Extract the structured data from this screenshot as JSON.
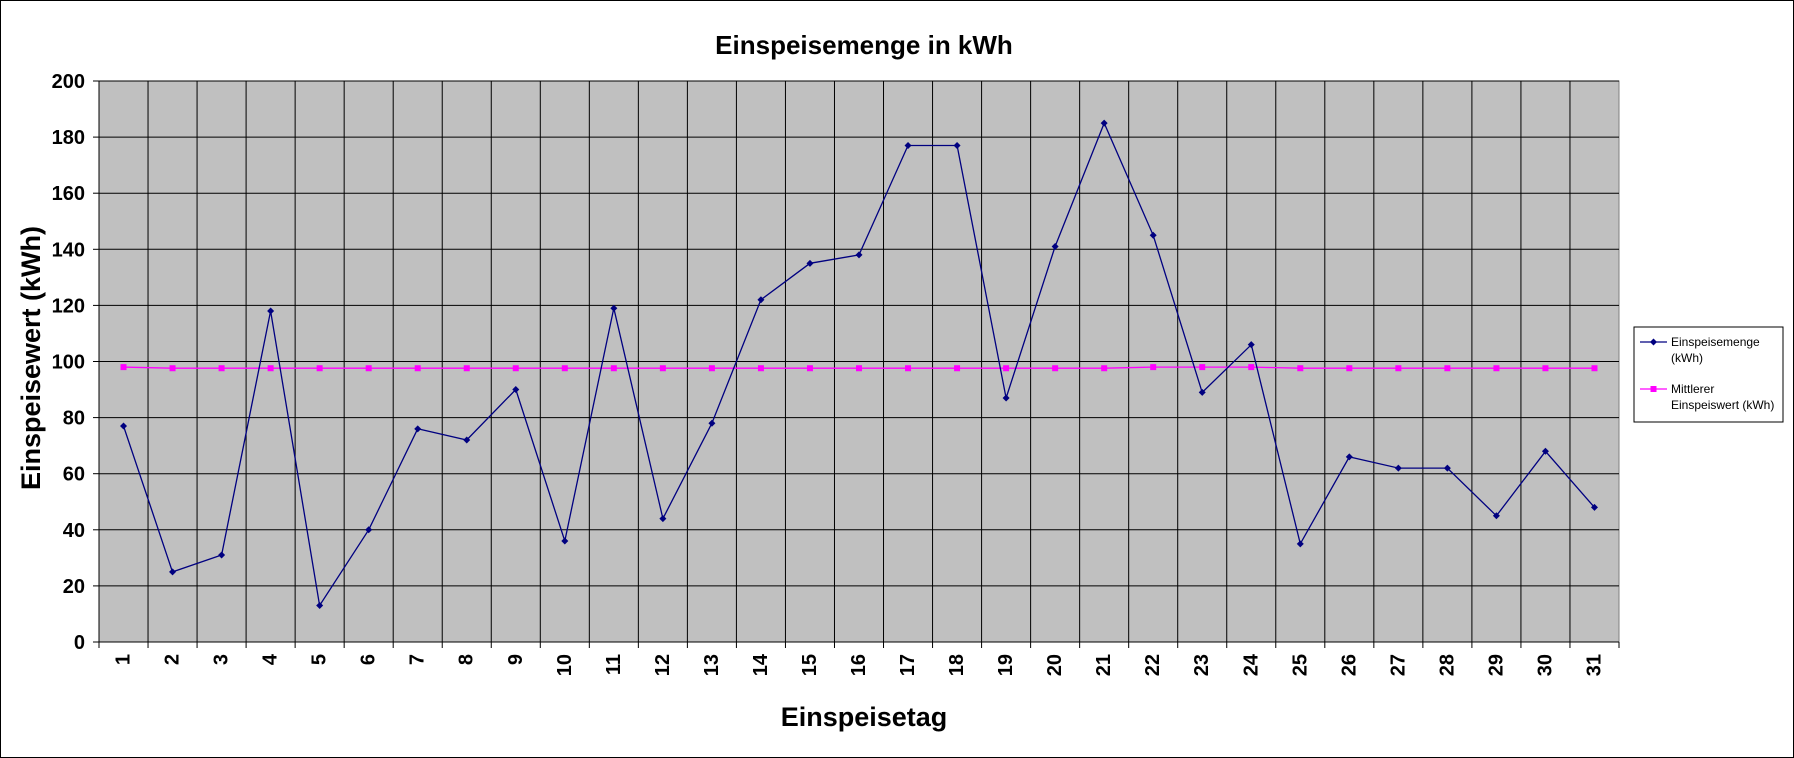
{
  "chart_data": {
    "type": "line",
    "title": "Einspeisemenge in kWh",
    "xlabel": "Einspeisetag",
    "ylabel": "Einspeisewert  (kWh)",
    "ylim": [
      0,
      200
    ],
    "yticks": [
      0,
      20,
      40,
      60,
      80,
      100,
      120,
      140,
      160,
      180,
      200
    ],
    "categories": [
      "1",
      "2",
      "3",
      "4",
      "5",
      "6",
      "7",
      "8",
      "9",
      "10",
      "11",
      "12",
      "13",
      "14",
      "15",
      "16",
      "17",
      "18",
      "19",
      "20",
      "21",
      "22",
      "23",
      "24",
      "25",
      "26",
      "27",
      "28",
      "29",
      "30",
      "31"
    ],
    "grid": true,
    "legend_position": "right",
    "series": [
      {
        "name": "Einspeisemenge (kWh)",
        "legend_lines": [
          "Einspeisemenge",
          "(kWh)"
        ],
        "color": "#000080",
        "marker": "diamond",
        "values": [
          77,
          25,
          31,
          118,
          13,
          40,
          76,
          72,
          90,
          36,
          119,
          44,
          78,
          122,
          135,
          138,
          177,
          177,
          87,
          141,
          185,
          145,
          89,
          106,
          35,
          66,
          62,
          62,
          45,
          68,
          48
        ]
      },
      {
        "name": "Mittlerer Einspeiswert (kWh)",
        "legend_lines": [
          "Mittlerer",
          "Einspeiswert (kWh)"
        ],
        "color": "#ff00ff",
        "marker": "square",
        "values": [
          98,
          97.6,
          97.6,
          97.6,
          97.6,
          97.6,
          97.6,
          97.6,
          97.6,
          97.6,
          97.6,
          97.6,
          97.6,
          97.6,
          97.6,
          97.6,
          97.6,
          97.6,
          97.6,
          97.6,
          97.6,
          98,
          98,
          98,
          97.6,
          97.6,
          97.6,
          97.6,
          97.6,
          97.6,
          97.6
        ]
      }
    ],
    "colors": {
      "plot_background": "#c0c0c0",
      "gridline": "#000000"
    }
  }
}
